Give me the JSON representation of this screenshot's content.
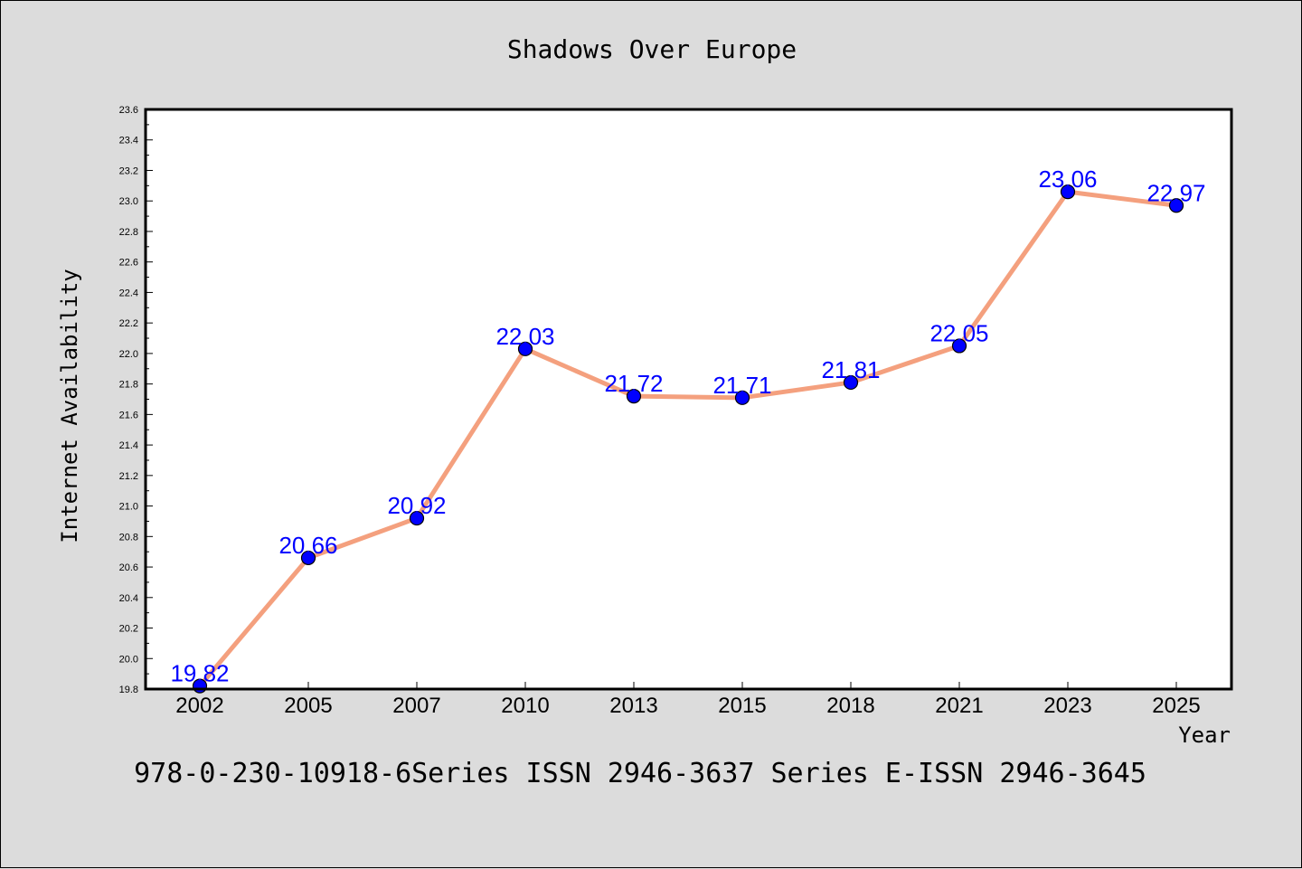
{
  "chart_data": {
    "type": "line",
    "title": "Shadows Over Europe",
    "xlabel": "Year",
    "ylabel": "Internet Availability",
    "categories": [
      "2002",
      "2005",
      "2007",
      "2010",
      "2013",
      "2015",
      "2018",
      "2021",
      "2023",
      "2025"
    ],
    "series": [
      {
        "values": [
          19.82,
          20.66,
          20.92,
          22.03,
          21.72,
          21.71,
          21.81,
          22.05,
          23.06,
          22.97
        ],
        "labels": [
          "19.82",
          "20.66",
          "20.92",
          "22.03",
          "21.72",
          "21.71",
          "21.81",
          "22.05",
          "23.06",
          "22.97"
        ]
      }
    ],
    "ylim": [
      19.8,
      23.6
    ],
    "yticks": [
      "19.8",
      "20.0",
      "20.2",
      "20.4",
      "20.6",
      "20.8",
      "21.0",
      "21.2",
      "21.4",
      "21.6",
      "21.8",
      "22.0",
      "22.2",
      "22.4",
      "22.6",
      "22.8",
      "23.0",
      "23.2",
      "23.4",
      "23.6"
    ],
    "grid": false,
    "legend": "none",
    "colors": {
      "line": "#f4a07e",
      "marker": "#0000ff",
      "data_label": "#0000ff",
      "background": "#dcdcdc",
      "plot_background": "#ffffff"
    }
  },
  "footer": "978-0-230-10918-6Series ISSN 2946-3637 Series E-ISSN 2946-3645"
}
